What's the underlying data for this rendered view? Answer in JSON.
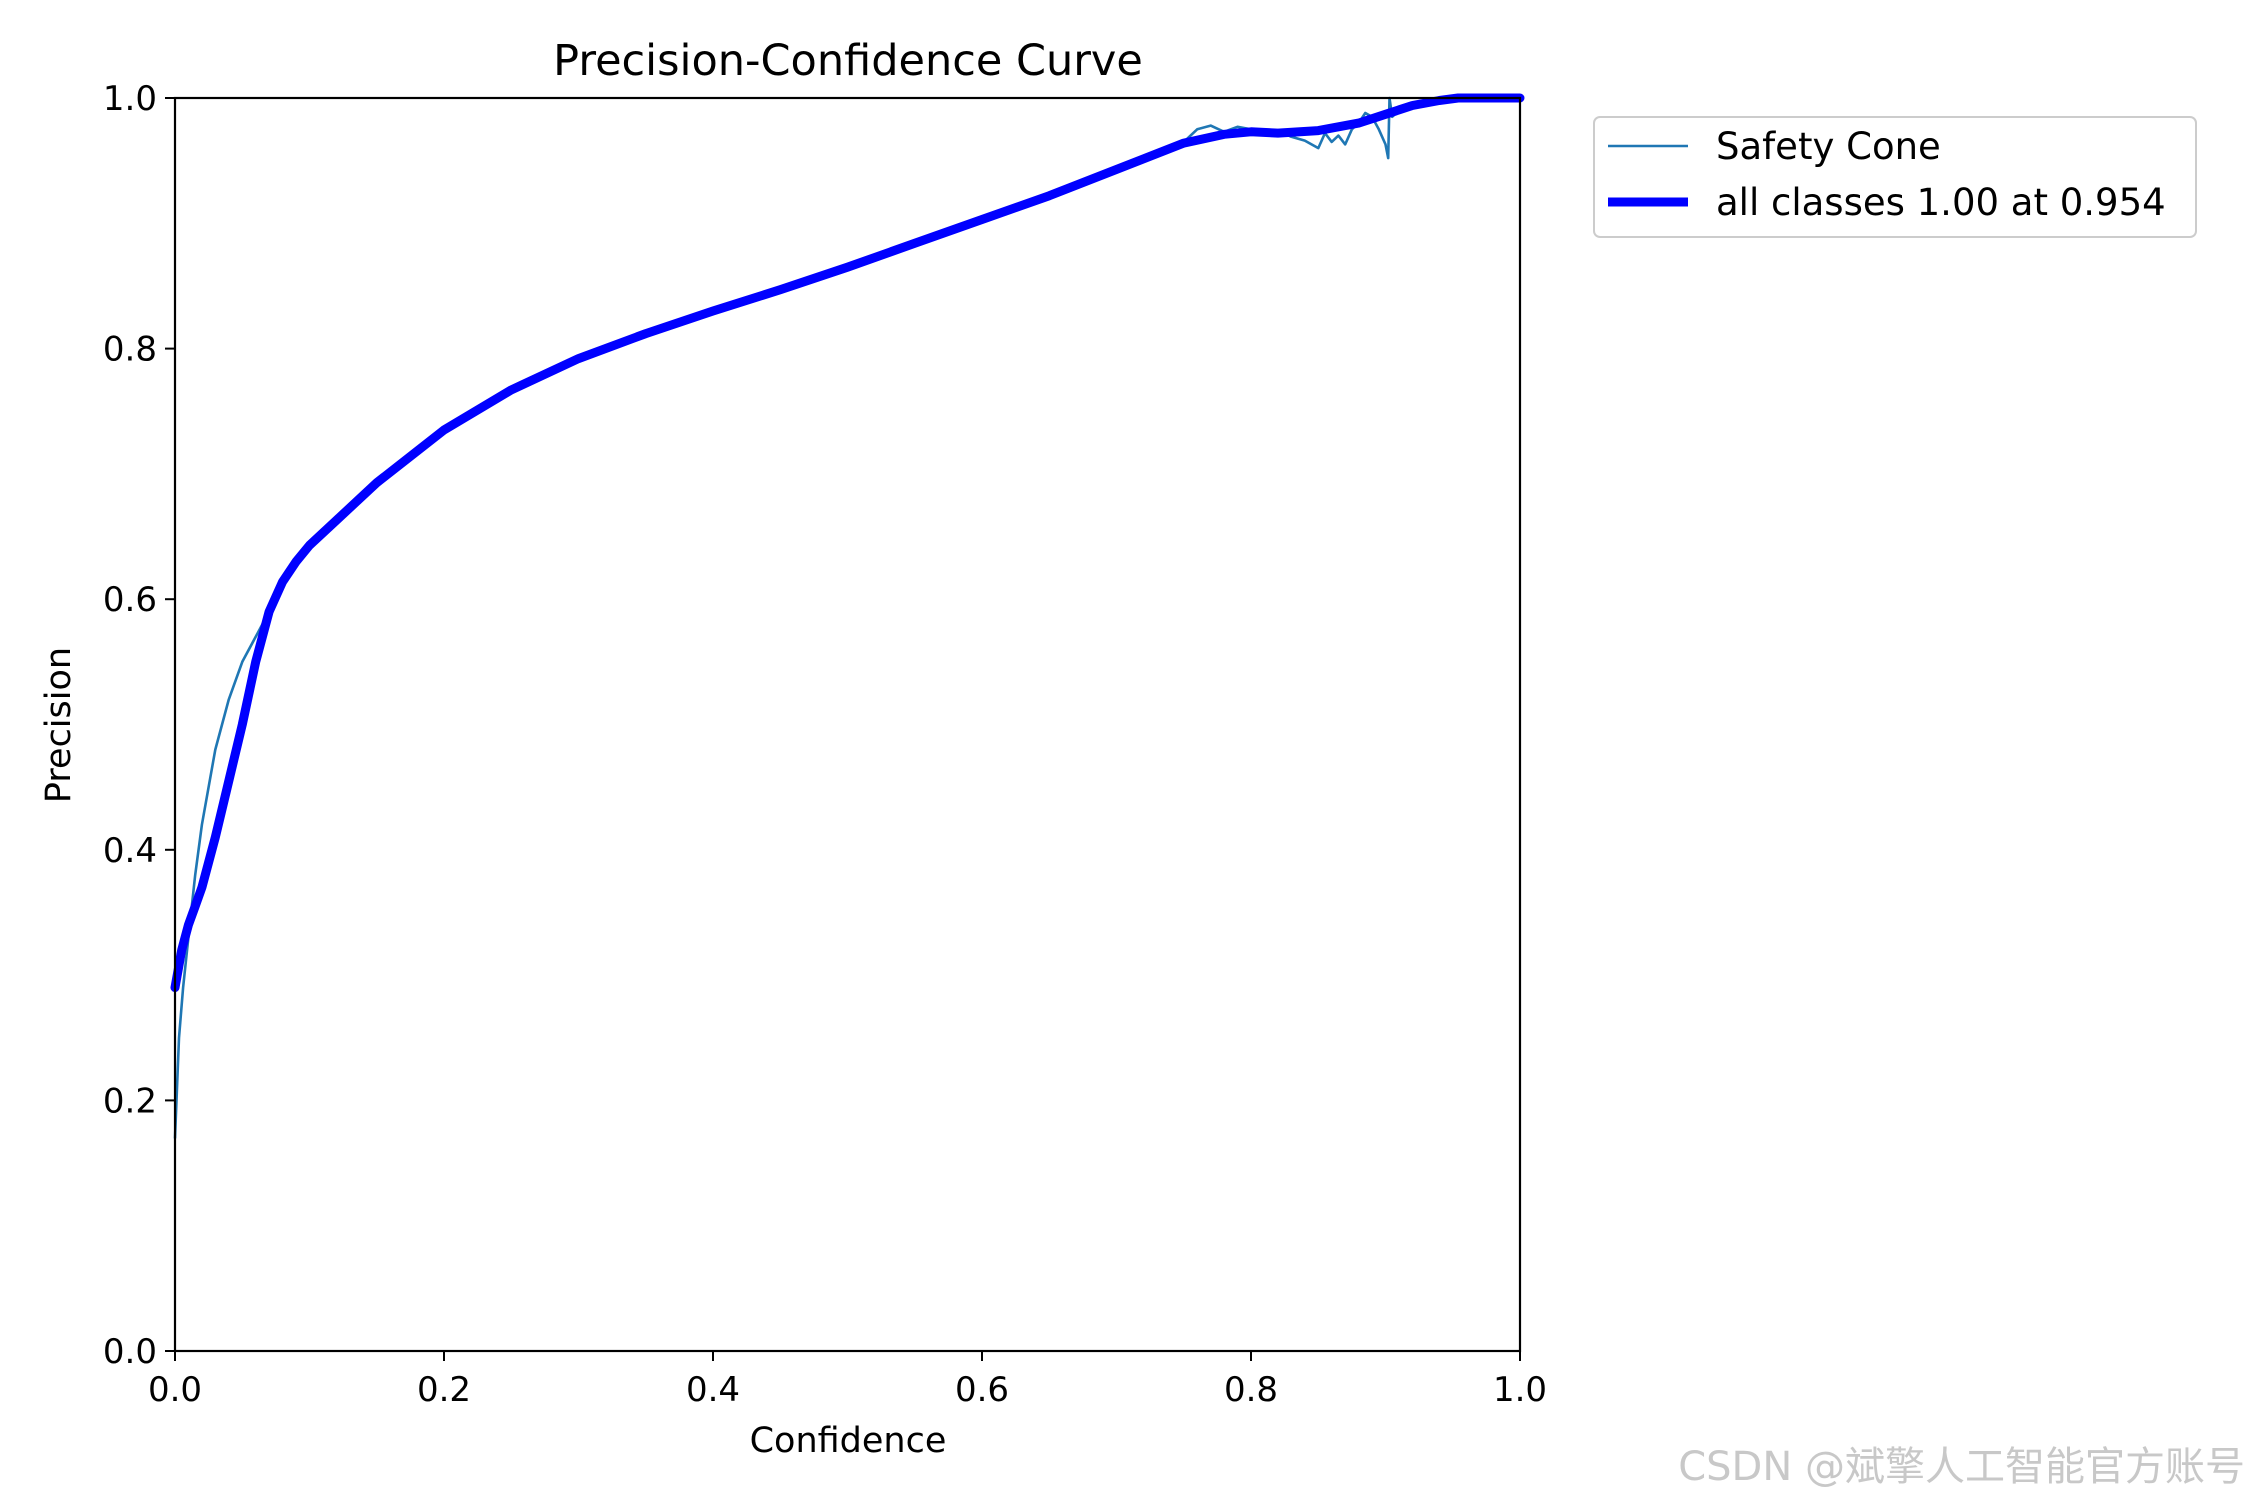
{
  "chart_data": {
    "type": "line",
    "title": "Precision-Confidence Curve",
    "xlabel": "Confidence",
    "ylabel": "Precision",
    "xlim": [
      0,
      1
    ],
    "ylim": [
      0,
      1
    ],
    "xticks": [
      "0.0",
      "0.2",
      "0.4",
      "0.6",
      "0.8",
      "1.0"
    ],
    "yticks": [
      "0.0",
      "0.2",
      "0.4",
      "0.6",
      "0.8",
      "1.0"
    ],
    "grid": false,
    "legend_position": "outside-top-right",
    "series": [
      {
        "name": "Safety Cone",
        "color": "#1f77b4",
        "line": "thin",
        "x": [
          0.0,
          0.003,
          0.006,
          0.01,
          0.015,
          0.02,
          0.025,
          0.03,
          0.04,
          0.05,
          0.06,
          0.07,
          0.08,
          0.09,
          0.1,
          0.12,
          0.15,
          0.2,
          0.25,
          0.3,
          0.35,
          0.4,
          0.45,
          0.5,
          0.55,
          0.6,
          0.65,
          0.7,
          0.75,
          0.76,
          0.77,
          0.78,
          0.79,
          0.8,
          0.81,
          0.82,
          0.83,
          0.84,
          0.85,
          0.855,
          0.86,
          0.865,
          0.87,
          0.875,
          0.88,
          0.885,
          0.89,
          0.895,
          0.9,
          0.902,
          0.903,
          0.905,
          0.91,
          0.92,
          0.95,
          1.0
        ],
        "y": [
          0.17,
          0.25,
          0.29,
          0.33,
          0.38,
          0.42,
          0.45,
          0.48,
          0.52,
          0.55,
          0.57,
          0.59,
          0.61,
          0.63,
          0.645,
          0.665,
          0.695,
          0.735,
          0.765,
          0.79,
          0.81,
          0.83,
          0.847,
          0.865,
          0.883,
          0.902,
          0.922,
          0.945,
          0.965,
          0.975,
          0.978,
          0.973,
          0.977,
          0.975,
          0.972,
          0.974,
          0.969,
          0.966,
          0.96,
          0.972,
          0.965,
          0.97,
          0.963,
          0.975,
          0.98,
          0.988,
          0.985,
          0.975,
          0.963,
          0.952,
          1.0,
          0.985,
          0.99,
          0.995,
          1.0,
          1.0
        ]
      },
      {
        "name": "all classes 1.00 at 0.954",
        "color": "#0000ff",
        "line": "thick",
        "x": [
          0.0,
          0.005,
          0.01,
          0.015,
          0.02,
          0.03,
          0.04,
          0.05,
          0.06,
          0.07,
          0.08,
          0.09,
          0.1,
          0.12,
          0.15,
          0.2,
          0.25,
          0.3,
          0.35,
          0.4,
          0.45,
          0.5,
          0.55,
          0.6,
          0.65,
          0.7,
          0.75,
          0.78,
          0.8,
          0.82,
          0.85,
          0.88,
          0.9,
          0.92,
          0.94,
          0.954,
          1.0
        ],
        "y": [
          0.29,
          0.32,
          0.34,
          0.355,
          0.37,
          0.41,
          0.455,
          0.5,
          0.55,
          0.59,
          0.614,
          0.63,
          0.643,
          0.663,
          0.693,
          0.735,
          0.767,
          0.792,
          0.812,
          0.83,
          0.847,
          0.865,
          0.884,
          0.903,
          0.922,
          0.943,
          0.964,
          0.971,
          0.973,
          0.972,
          0.974,
          0.98,
          0.987,
          0.994,
          0.998,
          1.0,
          1.0
        ]
      }
    ]
  },
  "watermark": "CSDN @斌擎人工智能官方账号"
}
